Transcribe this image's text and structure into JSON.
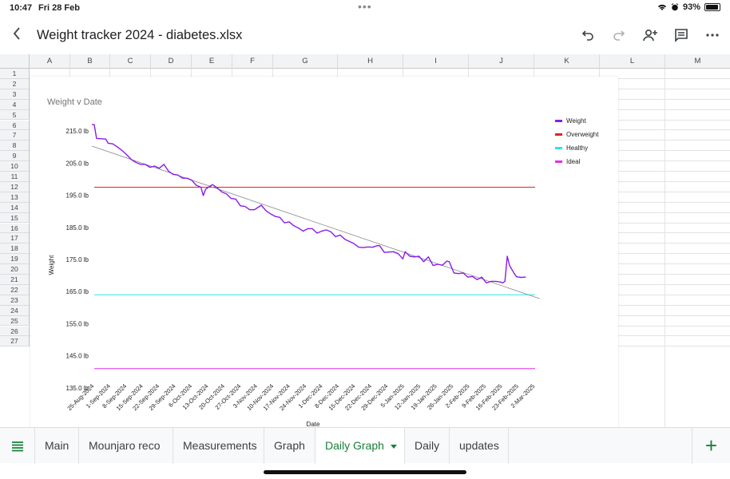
{
  "status": {
    "time": "10:47",
    "date": "Fri 28 Feb",
    "battery": "93%",
    "battery_level": 0.93
  },
  "header": {
    "title": "Weight tracker 2024 - diabetes.xlsx"
  },
  "icons": {
    "back": "chevron-left-icon",
    "undo": "undo-icon",
    "redo": "redo-icon",
    "share": "add-person-icon",
    "comment": "comment-icon",
    "more": "more-icon"
  },
  "columns": [
    "A",
    "B",
    "C",
    "D",
    "E",
    "F",
    "G",
    "H",
    "I",
    "J",
    "K",
    "L",
    "M"
  ],
  "rows": [
    "1",
    "2",
    "3",
    "4",
    "5",
    "6",
    "7",
    "8",
    "9",
    "10",
    "11",
    "12",
    "13",
    "14",
    "15",
    "16",
    "17",
    "18",
    "19",
    "20",
    "21",
    "22",
    "23",
    "24",
    "25",
    "26",
    "27"
  ],
  "tabs": {
    "items": [
      "Main",
      "Mounjaro reco",
      "Measurements",
      "Graph",
      "Daily Graph",
      "Daily",
      "updates"
    ],
    "active_index": 4
  },
  "chart_data": {
    "type": "line",
    "title": "Weight v Date",
    "xlabel": "Date",
    "ylabel": "Weight",
    "ylim": [
      130,
      220
    ],
    "yticks": [
      "135.0 lb",
      "145.0 lb",
      "155.0 lb",
      "165.0 lb",
      "175.0 lb",
      "185.0 lb",
      "195.0 lb",
      "205.0 lb",
      "215.0 lb"
    ],
    "ytick_values": [
      135,
      145,
      155,
      165,
      175,
      185,
      195,
      205,
      215
    ],
    "x_start": "25-Aug-2024",
    "x_end": "2-Mar-2025",
    "x_range_days": [
      0,
      190
    ],
    "xticks": [
      "25-Aug-2024",
      "1-Sep-2024",
      "8-Sep-2024",
      "15-Sep-2024",
      "22-Sep-2024",
      "29-Sep-2024",
      "6-Oct-2024",
      "13-Oct-2024",
      "20-Oct-2024",
      "27-Oct-2024",
      "3-Nov-2024",
      "10-Nov-2024",
      "17-Nov-2024",
      "24-Nov-2024",
      "1-Dec-2024",
      "8-Dec-2024",
      "15-Dec-2024",
      "22-Dec-2024",
      "29-Dec-2024",
      "5-Jan-2025",
      "12-Jan-2025",
      "19-Jan-2025",
      "26-Jan-2025",
      "2-Feb-2025",
      "9-Feb-2025",
      "16-Feb-2025",
      "23-Feb-2025",
      "2-Mar-2025"
    ],
    "legend": {
      "position": "right",
      "entries": [
        {
          "name": "Weight",
          "color": "#8a1ce8"
        },
        {
          "name": "Overweight",
          "color": "#e0231b"
        },
        {
          "name": "Healthy",
          "color": "#2ee6e6"
        },
        {
          "name": "Ideal",
          "color": "#e62ee6"
        }
      ]
    },
    "reference_lines": [
      {
        "name": "Overweight",
        "value": 197.5,
        "color": "#e0231b"
      },
      {
        "name": "Healthy",
        "value": 164,
        "color": "#2ee6e6"
      },
      {
        "name": "Ideal",
        "value": 141,
        "color": "#e62ee6"
      }
    ],
    "trendline": {
      "color": "#888888",
      "points": [
        [
          -1,
          210.3
        ],
        [
          192,
          162.8
        ]
      ]
    },
    "series": [
      {
        "name": "Weight",
        "color": "#8a1ce8",
        "points": [
          [
            -1,
            217
          ],
          [
            0,
            217
          ],
          [
            1,
            212.7
          ],
          [
            3,
            212.6
          ],
          [
            5,
            212.5
          ],
          [
            6,
            211.2
          ],
          [
            8,
            211
          ],
          [
            10,
            210
          ],
          [
            12,
            208.9
          ],
          [
            14,
            207.6
          ],
          [
            16,
            206.1
          ],
          [
            18,
            205.2
          ],
          [
            20,
            204.6
          ],
          [
            22,
            204.6
          ],
          [
            24,
            203.7
          ],
          [
            26,
            204.1
          ],
          [
            28,
            203.4
          ],
          [
            30,
            204.6
          ],
          [
            32,
            202.5
          ],
          [
            34,
            201.5
          ],
          [
            36,
            201.3
          ],
          [
            38,
            200.3
          ],
          [
            40,
            200.3
          ],
          [
            42,
            199.7
          ],
          [
            44,
            198.1
          ],
          [
            46,
            197.5
          ],
          [
            47,
            194.9
          ],
          [
            48,
            196.9
          ],
          [
            50,
            197.9
          ],
          [
            51,
            198.3
          ],
          [
            53,
            197.3
          ],
          [
            55,
            196
          ],
          [
            57,
            195.4
          ],
          [
            59,
            194
          ],
          [
            61,
            193.8
          ],
          [
            63,
            191.7
          ],
          [
            65,
            191.5
          ],
          [
            67,
            190.5
          ],
          [
            69,
            190.5
          ],
          [
            71,
            191.4
          ],
          [
            72,
            191.9
          ],
          [
            74,
            190.2
          ],
          [
            76,
            189.2
          ],
          [
            78,
            188.4
          ],
          [
            80,
            188.1
          ],
          [
            82,
            186.4
          ],
          [
            84,
            186.7
          ],
          [
            86,
            185.5
          ],
          [
            88,
            184.8
          ],
          [
            90,
            183.8
          ],
          [
            92,
            184.6
          ],
          [
            94,
            184.6
          ],
          [
            96,
            183.2
          ],
          [
            98,
            183.8
          ],
          [
            100,
            184.2
          ],
          [
            102,
            183.6
          ],
          [
            104,
            182.1
          ],
          [
            106,
            182.6
          ],
          [
            108,
            181.3
          ],
          [
            110,
            180.6
          ],
          [
            112,
            179.9
          ],
          [
            114,
            178.8
          ],
          [
            116,
            178.7
          ],
          [
            118,
            178.9
          ],
          [
            120,
            178.8
          ],
          [
            122,
            179.3
          ],
          [
            123,
            179.3
          ],
          [
            125,
            177.2
          ],
          [
            127,
            177.3
          ],
          [
            129,
            177.4
          ],
          [
            131,
            176.8
          ],
          [
            133,
            175.2
          ],
          [
            134,
            177.4
          ],
          [
            136,
            176
          ],
          [
            138,
            175.8
          ],
          [
            140,
            176
          ],
          [
            142,
            174.3
          ],
          [
            144,
            175.8
          ],
          [
            146,
            173.1
          ],
          [
            148,
            173.5
          ],
          [
            150,
            173.2
          ],
          [
            152,
            174.5
          ],
          [
            153,
            174.3
          ],
          [
            155,
            170.8
          ],
          [
            157,
            170.6
          ],
          [
            159,
            170.8
          ],
          [
            161,
            169.5
          ],
          [
            163,
            169.7
          ],
          [
            165,
            168.7
          ],
          [
            167,
            169.5
          ],
          [
            169,
            167.7
          ],
          [
            171,
            168.2
          ],
          [
            173,
            168.2
          ],
          [
            175,
            168
          ],
          [
            176,
            167.7
          ],
          [
            177,
            168.2
          ],
          [
            178,
            176
          ],
          [
            179,
            173.1
          ],
          [
            181,
            170.6
          ],
          [
            182,
            169.6
          ],
          [
            184,
            169.4
          ],
          [
            186,
            169.5
          ]
        ]
      }
    ],
    "grid": false
  }
}
